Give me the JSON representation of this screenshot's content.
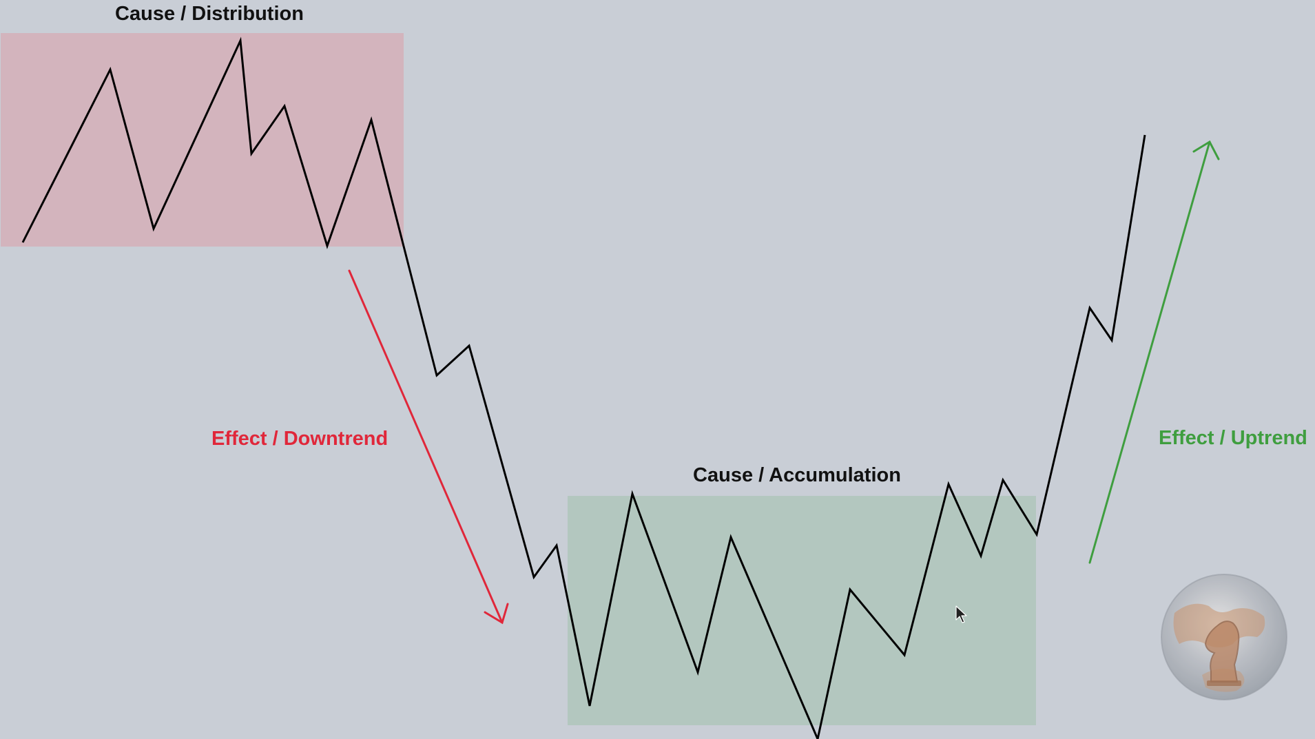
{
  "labels": {
    "distribution": "Cause / Distribution",
    "downtrend": "Effect / Downtrend",
    "accumulation": "Cause / Accumulation",
    "uptrend": "Effect / Uptrend"
  },
  "colors": {
    "background": "#c9ced6",
    "distribution_zone": "#d3b4bd",
    "accumulation_zone": "#b3c7bf",
    "price_line": "#000000",
    "downtrend": "#e0273a",
    "uptrend": "#3f9e3f",
    "label_text": "#111111"
  },
  "icons": {
    "cursor": "mouse-pointer-icon",
    "logo": "chess-knight-globe-logo"
  }
}
